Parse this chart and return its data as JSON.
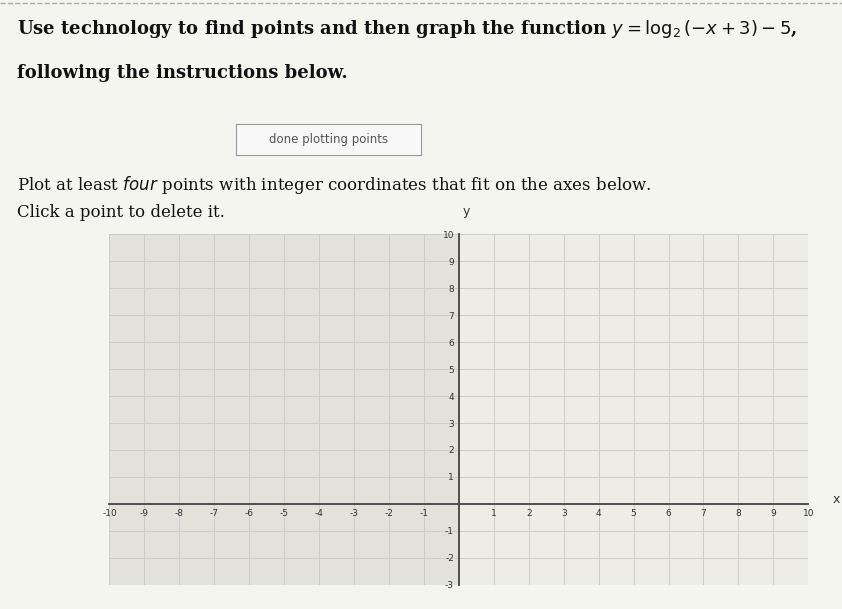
{
  "button_text": "done plotting points",
  "xlim": [
    -10,
    10
  ],
  "ylim": [
    -3,
    10
  ],
  "grid_color": "#cccccc",
  "axis_color": "#444444",
  "bg_color": "#f5f5f0",
  "plot_bg_left": "#e2e2da",
  "plot_bg_right": "#ededE5",
  "title_fontsize": 13,
  "instruction_fontsize": 12
}
